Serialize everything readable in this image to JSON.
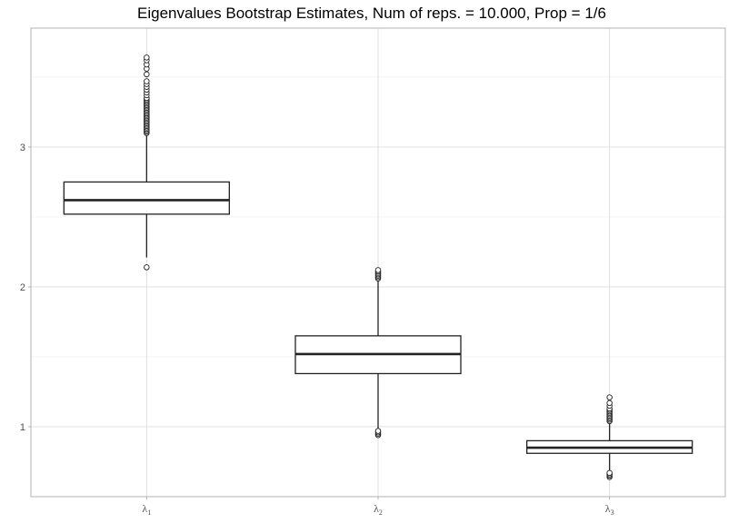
{
  "chart_data": {
    "type": "boxplot",
    "title": "Eigenvalues Bootstrap Estimates, Num of reps. = 10.000, Prop = 1/6",
    "xlabel": "",
    "ylabel": "",
    "categories": [
      {
        "symbol": "λ",
        "subscript": "1"
      },
      {
        "symbol": "λ",
        "subscript": "2"
      },
      {
        "symbol": "λ",
        "subscript": "3"
      }
    ],
    "y_ticks": [
      1,
      2,
      3
    ],
    "y_minor_ticks": [
      1.5,
      2.5,
      3.5
    ],
    "ylim": [
      0.5,
      3.85
    ],
    "grid": true,
    "boxes": [
      {
        "category": "λ1",
        "whisker_low": 2.21,
        "q1": 2.52,
        "median": 2.62,
        "q3": 2.75,
        "whisker_high": 3.09,
        "outliers": [
          2.14,
          3.1,
          3.11,
          3.12,
          3.13,
          3.14,
          3.15,
          3.16,
          3.17,
          3.18,
          3.19,
          3.2,
          3.21,
          3.22,
          3.23,
          3.24,
          3.25,
          3.26,
          3.27,
          3.28,
          3.29,
          3.3,
          3.31,
          3.32,
          3.33,
          3.34,
          3.35,
          3.37,
          3.39,
          3.41,
          3.43,
          3.45,
          3.47,
          3.52,
          3.56,
          3.59,
          3.62,
          3.64
        ]
      },
      {
        "category": "λ2",
        "whisker_low": 0.98,
        "q1": 1.38,
        "median": 1.52,
        "q3": 1.65,
        "whisker_high": 2.05,
        "outliers": [
          0.94,
          0.95,
          0.96,
          0.97,
          2.06,
          2.07,
          2.08,
          2.09,
          2.1,
          2.11,
          2.12
        ]
      },
      {
        "category": "λ3",
        "whisker_low": 0.68,
        "q1": 0.81,
        "median": 0.85,
        "q3": 0.9,
        "whisker_high": 1.03,
        "outliers": [
          0.64,
          0.65,
          0.66,
          0.67,
          1.04,
          1.05,
          1.06,
          1.07,
          1.08,
          1.09,
          1.1,
          1.11,
          1.12,
          1.13,
          1.15,
          1.17,
          1.21
        ]
      }
    ]
  },
  "colors": {
    "box_stroke": "#222222",
    "box_fill": "#ffffff",
    "grid": "#dcdcdc",
    "panel_border": "#b3b3b3"
  }
}
